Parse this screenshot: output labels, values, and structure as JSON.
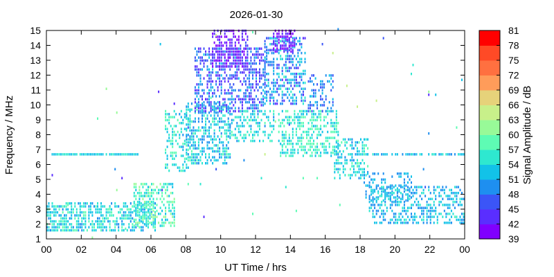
{
  "chart_data": {
    "type": "heatmap",
    "title": "2026-01-30",
    "xlabel": "UT Time / hrs",
    "ylabel": "Frequency / MHz",
    "colorbar_label": "Signal Amplitude / dB",
    "xlim": [
      0,
      24
    ],
    "ylim": [
      1,
      15
    ],
    "x_tick_labels": [
      "00",
      "02",
      "04",
      "06",
      "08",
      "10",
      "12",
      "14",
      "16",
      "18",
      "20",
      "22",
      "00"
    ],
    "y_tick_labels": [
      "1",
      "2",
      "3",
      "4",
      "5",
      "6",
      "7",
      "8",
      "9",
      "10",
      "11",
      "12",
      "13",
      "14",
      "15"
    ],
    "colorbar_ticks": [
      39,
      42,
      45,
      48,
      51,
      54,
      57,
      60,
      63,
      66,
      69,
      72,
      75,
      78,
      81
    ],
    "colorbar_range": [
      39,
      81
    ],
    "colorbar_colors": [
      "#8000ff",
      "#5a2eff",
      "#3b55f7",
      "#1e8ff0",
      "#12c2e8",
      "#2ee8d0",
      "#5efcb4",
      "#98fa98",
      "#c8f08a",
      "#e6d27a",
      "#ff9c5a",
      "#ff7040",
      "#ff4a26",
      "#ff0000"
    ],
    "grid": false,
    "clusters": [
      {
        "x": [
          0.0,
          6.2
        ],
        "y": [
          1.5,
          3.5
        ],
        "density": 0.6,
        "amp": [
          50,
          58
        ]
      },
      {
        "x": [
          0.2,
          5.4
        ],
        "y": [
          6.6,
          6.8
        ],
        "density": 0.9,
        "amp": [
          51,
          56
        ]
      },
      {
        "x": [
          5.0,
          7.3
        ],
        "y": [
          1.8,
          4.8
        ],
        "density": 0.5,
        "amp": [
          52,
          62
        ]
      },
      {
        "x": [
          6.8,
          8.2
        ],
        "y": [
          5.5,
          9.5
        ],
        "density": 0.4,
        "amp": [
          50,
          60
        ]
      },
      {
        "x": [
          8.0,
          10.5
        ],
        "y": [
          6.0,
          10.0
        ],
        "density": 0.55,
        "amp": [
          48,
          58
        ]
      },
      {
        "x": [
          8.5,
          12.5
        ],
        "y": [
          9.5,
          13.8
        ],
        "density": 0.5,
        "amp": [
          42,
          52
        ]
      },
      {
        "x": [
          9.5,
          11.5
        ],
        "y": [
          12.5,
          15.0
        ],
        "density": 0.55,
        "amp": [
          39,
          46
        ]
      },
      {
        "x": [
          10.5,
          13.0
        ],
        "y": [
          7.5,
          9.5
        ],
        "density": 0.4,
        "amp": [
          50,
          58
        ]
      },
      {
        "x": [
          12.5,
          14.8
        ],
        "y": [
          10.0,
          14.5
        ],
        "density": 0.5,
        "amp": [
          44,
          55
        ]
      },
      {
        "x": [
          13.0,
          14.2
        ],
        "y": [
          13.5,
          15.0
        ],
        "density": 0.6,
        "amp": [
          39,
          45
        ]
      },
      {
        "x": [
          13.3,
          16.8
        ],
        "y": [
          6.5,
          9.5
        ],
        "density": 0.5,
        "amp": [
          52,
          60
        ]
      },
      {
        "x": [
          15.0,
          16.5
        ],
        "y": [
          9.5,
          12.0
        ],
        "density": 0.35,
        "amp": [
          45,
          52
        ]
      },
      {
        "x": [
          16.5,
          18.5
        ],
        "y": [
          5.0,
          7.8
        ],
        "density": 0.45,
        "amp": [
          50,
          58
        ]
      },
      {
        "x": [
          18.2,
          21.0
        ],
        "y": [
          3.5,
          5.5
        ],
        "density": 0.35,
        "amp": [
          48,
          54
        ]
      },
      {
        "x": [
          18.5,
          24.0
        ],
        "y": [
          2.0,
          4.5
        ],
        "density": 0.45,
        "amp": [
          48,
          56
        ]
      },
      {
        "x": [
          17.5,
          24.0
        ],
        "y": [
          6.6,
          6.8
        ],
        "density": 0.7,
        "amp": [
          50,
          55
        ]
      },
      {
        "x": [
          0.0,
          24.0
        ],
        "y": [
          1.0,
          15.0
        ],
        "density": 0.004,
        "amp": [
          42,
          66
        ]
      }
    ]
  }
}
